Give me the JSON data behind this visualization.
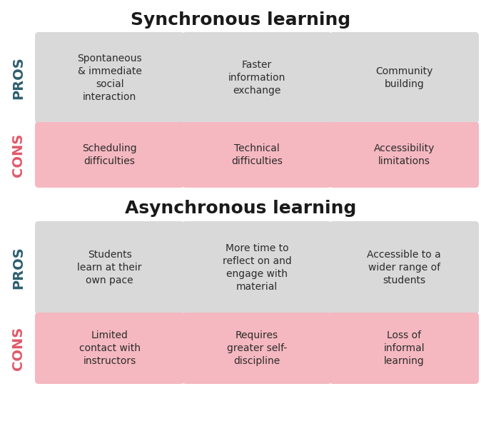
{
  "title1": "Synchronous learning",
  "title2": "Asynchronous learning",
  "pros_color": "#2e5f6e",
  "cons_color": "#e05a6a",
  "pros_bg": "#d9d9d9",
  "cons_bg": "#f5b8c0",
  "background": "#ffffff",
  "font_size_title": 18,
  "font_size_cell": 10,
  "font_size_label": 14,
  "sections": [
    {
      "type": "pros",
      "items": [
        "Spontaneous\n& immediate\nsocial\ninteraction",
        "Faster\ninformation\nexchange",
        "Community\nbuilding"
      ]
    },
    {
      "type": "cons",
      "items": [
        "Scheduling\ndifficulties",
        "Technical\ndifficulties",
        "Accessibility\nlimitations"
      ]
    },
    {
      "type": "pros",
      "items": [
        "Students\nlearn at their\nown pace",
        "More time to\nreflect on and\nengage with\nmaterial",
        "Accessible to a\nwider range of\nstudents"
      ]
    },
    {
      "type": "cons",
      "items": [
        "Limited\ncontact with\ninstructors",
        "Requires\ngreater self-\ndiscipline",
        "Loss of\ninformal\nlearning"
      ]
    }
  ]
}
